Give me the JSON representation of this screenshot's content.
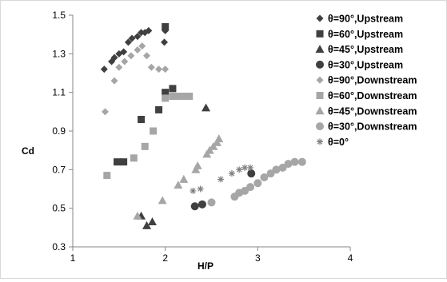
{
  "chart_data": {
    "type": "scatter",
    "title": "",
    "xlabel": "H/P",
    "ylabel": "Cd",
    "xlim": [
      1,
      4
    ],
    "ylim": [
      0.3,
      1.5
    ],
    "xticks": [
      1,
      2,
      3,
      4
    ],
    "yticks": [
      0.3,
      0.5,
      0.7,
      0.9,
      1.1,
      1.3,
      1.5
    ],
    "xtick_labels": [
      "1",
      "2",
      "3",
      "4"
    ],
    "ytick_labels": [
      "0.3",
      "0.5",
      "0.7",
      "0.9",
      "1.1",
      "1.3",
      "1.5"
    ],
    "grid": false,
    "legend_position": "right",
    "series": [
      {
        "name": "θ=90°,Upstream",
        "marker": "diamond",
        "color": "#404040",
        "points": [
          [
            1.34,
            1.22
          ],
          [
            1.42,
            1.26
          ],
          [
            1.45,
            1.28
          ],
          [
            1.5,
            1.3
          ],
          [
            1.55,
            1.31
          ],
          [
            1.6,
            1.36
          ],
          [
            1.64,
            1.38
          ],
          [
            1.7,
            1.39
          ],
          [
            1.74,
            1.41
          ],
          [
            1.78,
            1.41
          ],
          [
            1.82,
            1.42
          ],
          [
            1.99,
            1.36
          ],
          [
            2.0,
            1.42
          ]
        ]
      },
      {
        "name": "θ=60°,Upstream",
        "marker": "square",
        "color": "#404040",
        "points": [
          [
            1.48,
            0.74
          ],
          [
            1.55,
            0.74
          ],
          [
            1.74,
            0.96
          ],
          [
            1.93,
            1.01
          ],
          [
            2.0,
            1.1
          ],
          [
            2.08,
            1.12
          ],
          [
            2.0,
            1.44
          ]
        ]
      },
      {
        "name": "θ=45°,Upstream",
        "marker": "triangle",
        "color": "#404040",
        "points": [
          [
            1.74,
            0.46
          ],
          [
            1.8,
            0.41
          ],
          [
            1.86,
            0.43
          ],
          [
            2.44,
            1.02
          ]
        ]
      },
      {
        "name": "θ=30°,Upstream",
        "marker": "circle",
        "color": "#404040",
        "points": [
          [
            2.32,
            0.51
          ],
          [
            2.4,
            0.52
          ],
          [
            2.93,
            0.68
          ]
        ]
      },
      {
        "name": "θ=90°,Downstream",
        "marker": "diamond",
        "color": "#a6a6a6",
        "points": [
          [
            1.35,
            1.0
          ],
          [
            1.45,
            1.16
          ],
          [
            1.5,
            1.23
          ],
          [
            1.56,
            1.26
          ],
          [
            1.63,
            1.29
          ],
          [
            1.7,
            1.32
          ],
          [
            1.75,
            1.34
          ],
          [
            1.8,
            1.29
          ],
          [
            1.85,
            1.23
          ],
          [
            1.93,
            1.22
          ],
          [
            2.0,
            1.22
          ]
        ]
      },
      {
        "name": "θ=60°,Downstream",
        "marker": "square",
        "color": "#a6a6a6",
        "points": [
          [
            1.37,
            0.67
          ],
          [
            1.66,
            0.76
          ],
          [
            1.78,
            0.82
          ],
          [
            1.87,
            0.9
          ],
          [
            2.0,
            1.07
          ],
          [
            2.08,
            1.08
          ],
          [
            2.14,
            1.08
          ],
          [
            2.2,
            1.08
          ],
          [
            2.26,
            1.08
          ]
        ]
      },
      {
        "name": "θ=45°,Downstream",
        "marker": "triangle",
        "color": "#a6a6a6",
        "points": [
          [
            1.7,
            0.46
          ],
          [
            1.97,
            0.54
          ],
          [
            2.14,
            0.62
          ],
          [
            2.2,
            0.65
          ],
          [
            2.33,
            0.7
          ],
          [
            2.35,
            0.72
          ],
          [
            2.45,
            0.78
          ],
          [
            2.48,
            0.8
          ],
          [
            2.52,
            0.82
          ],
          [
            2.56,
            0.84
          ],
          [
            2.58,
            0.86
          ]
        ]
      },
      {
        "name": "θ=30°,Downstream",
        "marker": "circle",
        "color": "#a6a6a6",
        "points": [
          [
            2.5,
            0.53
          ],
          [
            2.75,
            0.56
          ],
          [
            2.8,
            0.58
          ],
          [
            2.86,
            0.59
          ],
          [
            2.92,
            0.61
          ],
          [
            3.0,
            0.63
          ],
          [
            3.07,
            0.66
          ],
          [
            3.14,
            0.68
          ],
          [
            3.2,
            0.7
          ],
          [
            3.27,
            0.71
          ],
          [
            3.33,
            0.73
          ],
          [
            3.4,
            0.74
          ],
          [
            3.48,
            0.74
          ]
        ]
      },
      {
        "name": "θ=0°",
        "marker": "asterisk",
        "color": "#808080",
        "points": [
          [
            2.3,
            0.59
          ],
          [
            2.38,
            0.6
          ],
          [
            2.6,
            0.65
          ],
          [
            2.72,
            0.68
          ],
          [
            2.8,
            0.7
          ],
          [
            2.86,
            0.71
          ],
          [
            2.92,
            0.71
          ]
        ]
      }
    ]
  }
}
